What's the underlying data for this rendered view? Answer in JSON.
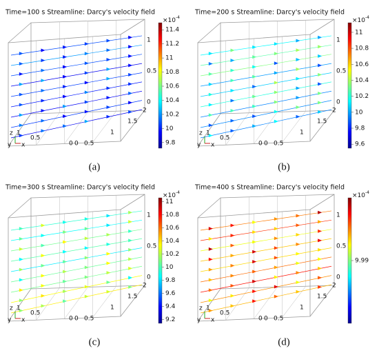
{
  "panels": [
    {
      "title": "Time=100 s  Streamline: Darcy's velocity field",
      "colorbar": {
        "exponent": "×10",
        "power": "-4",
        "range": [
          9.72,
          11.5
        ],
        "ticks": [
          11.4,
          11.2,
          11,
          10.8,
          10.6,
          10.4,
          10.2,
          10,
          9.8
        ]
      },
      "z_axis": [
        "1",
        "0.5",
        "0"
      ],
      "y_axis": [
        "2",
        "1.5",
        "1",
        "0.5",
        "0"
      ],
      "x_axis": [
        "0.5",
        "0"
      ],
      "triad": [
        "z",
        "1",
        "y",
        "x"
      ],
      "caption": "(a)"
    },
    {
      "title": "Time=200 s  Streamline: Darcy's velocity field",
      "colorbar": {
        "exponent": "×10",
        "power": "-4",
        "range": [
          9.55,
          11.12
        ],
        "ticks": [
          11,
          10.8,
          10.6,
          10.4,
          10.2,
          10,
          9.8,
          9.6
        ]
      },
      "z_axis": [
        "1",
        "0.5",
        "0"
      ],
      "y_axis": [
        "2",
        "1.5",
        "1",
        "0.5",
        "0"
      ],
      "x_axis": [
        "0.5",
        "0"
      ],
      "triad": [
        "z",
        "1",
        "y",
        "x"
      ],
      "caption": "(b)"
    },
    {
      "title": "Time=300 s  Streamline: Darcy's velocity field",
      "colorbar": {
        "exponent": "×10",
        "power": "-4",
        "range": [
          9.14,
          11.06
        ],
        "ticks": [
          11,
          10.8,
          10.6,
          10.4,
          10.2,
          10,
          9.8,
          9.6,
          9.4,
          9.2
        ]
      },
      "z_axis": [
        "1",
        "0.5",
        "0"
      ],
      "y_axis": [
        "2",
        "1.5",
        "1",
        "0.5",
        "0"
      ],
      "x_axis": [
        "0.5",
        "0"
      ],
      "triad": [
        "z",
        "1",
        "y",
        "x"
      ],
      "caption": "(c)"
    },
    {
      "title": "Time=400 s  Streamline: Darcy's velocity field",
      "colorbar": {
        "exponent": "×10",
        "power": "-4",
        "range": [
          9.98,
          10.0
        ],
        "ticks": [
          9.99
        ]
      },
      "z_axis": [
        "1",
        "0.5",
        "0"
      ],
      "y_axis": [
        "2",
        "1.5",
        "1",
        "0.5",
        "0"
      ],
      "x_axis": [
        "0.5",
        "0"
      ],
      "triad": [
        "z",
        "1",
        "y",
        "x"
      ],
      "caption": "(d)"
    }
  ]
}
